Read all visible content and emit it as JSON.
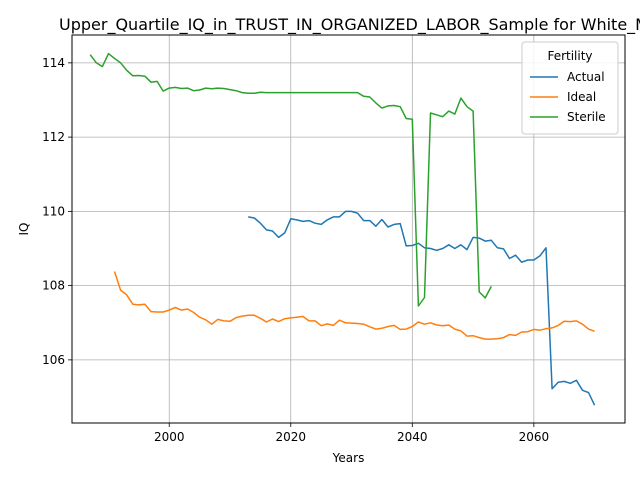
{
  "chart_data": {
    "type": "line",
    "title": "Upper_Quartile_IQ_in_TRUST_IN_ORGANIZED_LABOR_Sample for White_M",
    "xlabel": "Years",
    "ylabel": "IQ",
    "xlim": [
      1984,
      2075
    ],
    "ylim": [
      104.3,
      114.75
    ],
    "xticks": [
      2000,
      2020,
      2040,
      2060
    ],
    "yticks": [
      106,
      108,
      110,
      112,
      114
    ],
    "xtick_labels": [
      "2000",
      "2020",
      "2040",
      "2060"
    ],
    "ytick_labels": [
      "106",
      "108",
      "110",
      "112",
      "114"
    ],
    "grid": true,
    "legend": {
      "title": "Fertility",
      "placement": "top-right"
    },
    "series": [
      {
        "name": "Actual",
        "color": "#1f77b4",
        "x": [
          2013,
          2014,
          2015,
          2016,
          2017,
          2018,
          2019,
          2020,
          2021,
          2022,
          2023,
          2024,
          2025,
          2026,
          2027,
          2028,
          2029,
          2030,
          2031,
          2032,
          2033,
          2034,
          2035,
          2036,
          2037,
          2038,
          2039,
          2040,
          2041,
          2042,
          2043,
          2044,
          2045,
          2046,
          2047,
          2048,
          2049,
          2050,
          2051,
          2052,
          2053,
          2054,
          2055,
          2056,
          2057,
          2058,
          2059,
          2060,
          2061,
          2062,
          2063,
          2064,
          2065,
          2066,
          2067,
          2068,
          2069,
          2070
        ],
        "y": [
          109.85,
          109.82,
          109.68,
          109.5,
          109.47,
          109.3,
          109.42,
          109.8,
          109.77,
          109.73,
          109.75,
          109.68,
          109.65,
          109.77,
          109.85,
          109.85,
          110.0,
          110.0,
          109.95,
          109.75,
          109.75,
          109.6,
          109.78,
          109.58,
          109.65,
          109.67,
          109.07,
          109.08,
          109.14,
          109.02,
          109.0,
          108.95,
          109.0,
          109.1,
          109.0,
          109.1,
          108.97,
          109.3,
          109.28,
          109.2,
          109.22,
          109.02,
          108.99,
          108.73,
          108.82,
          108.63,
          108.69,
          108.69,
          108.8,
          109.02,
          105.22,
          105.4,
          105.42,
          105.37,
          105.45,
          105.18,
          105.12,
          104.78
        ]
      },
      {
        "name": "Ideal",
        "color": "#ff7f0e",
        "x": [
          1991,
          1992,
          1993,
          1994,
          1995,
          1996,
          1997,
          1998,
          1999,
          2000,
          2001,
          2002,
          2003,
          2004,
          2005,
          2006,
          2007,
          2008,
          2009,
          2010,
          2011,
          2012,
          2013,
          2014,
          2015,
          2016,
          2017,
          2018,
          2019,
          2020,
          2021,
          2022,
          2023,
          2024,
          2025,
          2026,
          2027,
          2028,
          2029,
          2030,
          2031,
          2032,
          2033,
          2034,
          2035,
          2036,
          2037,
          2038,
          2039,
          2040,
          2041,
          2042,
          2043,
          2044,
          2045,
          2046,
          2047,
          2048,
          2049,
          2050,
          2051,
          2052,
          2053,
          2054,
          2055,
          2056,
          2057,
          2058,
          2059,
          2060,
          2061,
          2062,
          2063,
          2064,
          2065,
          2066,
          2067,
          2068,
          2069,
          2070
        ],
        "y": [
          108.38,
          107.88,
          107.75,
          107.5,
          107.48,
          107.5,
          107.3,
          107.29,
          107.29,
          107.34,
          107.41,
          107.34,
          107.37,
          107.28,
          107.15,
          107.08,
          106.96,
          107.09,
          107.05,
          107.04,
          107.14,
          107.18,
          107.2,
          107.2,
          107.12,
          107.02,
          107.1,
          107.03,
          107.11,
          107.13,
          107.15,
          107.17,
          107.05,
          107.05,
          106.92,
          106.97,
          106.93,
          107.07,
          107.0,
          106.99,
          106.98,
          106.96,
          106.89,
          106.83,
          106.85,
          106.9,
          106.93,
          106.82,
          106.83,
          106.9,
          107.02,
          106.96,
          107.0,
          106.94,
          106.92,
          106.94,
          106.83,
          106.78,
          106.64,
          106.65,
          106.6,
          106.56,
          106.56,
          106.57,
          106.6,
          106.68,
          106.66,
          106.75,
          106.76,
          106.82,
          106.8,
          106.84,
          106.86,
          106.93,
          107.04,
          107.03,
          107.05,
          106.96,
          106.83,
          106.77
        ]
      },
      {
        "name": "Sterile",
        "color": "#2ca02c",
        "x": [
          1987,
          1988,
          1989,
          1990,
          1991,
          1992,
          1993,
          1994,
          1995,
          1996,
          1997,
          1998,
          1999,
          2000,
          2001,
          2002,
          2003,
          2004,
          2005,
          2006,
          2007,
          2008,
          2009,
          2010,
          2011,
          2012,
          2013,
          2014,
          2015,
          2016,
          2017,
          2018,
          2019,
          2020,
          2021,
          2022,
          2023,
          2024,
          2025,
          2026,
          2027,
          2028,
          2029,
          2030,
          2031,
          2032,
          2033,
          2034,
          2035,
          2036,
          2037,
          2038,
          2039,
          2040,
          2041,
          2042,
          2043,
          2044,
          2045,
          2046,
          2047,
          2048,
          2049,
          2050,
          2051,
          2052,
          2053
        ],
        "y": [
          114.22,
          114.0,
          113.9,
          114.25,
          114.12,
          114.0,
          113.8,
          113.65,
          113.66,
          113.64,
          113.48,
          113.5,
          113.24,
          113.32,
          113.34,
          113.31,
          113.32,
          113.25,
          113.27,
          113.32,
          113.3,
          113.32,
          113.31,
          113.28,
          113.25,
          113.2,
          113.18,
          113.18,
          113.21,
          113.2,
          113.2,
          113.2,
          113.2,
          113.2,
          113.2,
          113.2,
          113.2,
          113.2,
          113.2,
          113.2,
          113.2,
          113.2,
          113.2,
          113.2,
          113.2,
          113.1,
          113.08,
          112.92,
          112.78,
          112.84,
          112.85,
          112.82,
          112.5,
          112.48,
          107.45,
          107.68,
          112.65,
          112.6,
          112.55,
          112.7,
          112.62,
          113.05,
          112.82,
          112.7,
          107.83,
          107.67,
          107.98
        ]
      }
    ]
  }
}
